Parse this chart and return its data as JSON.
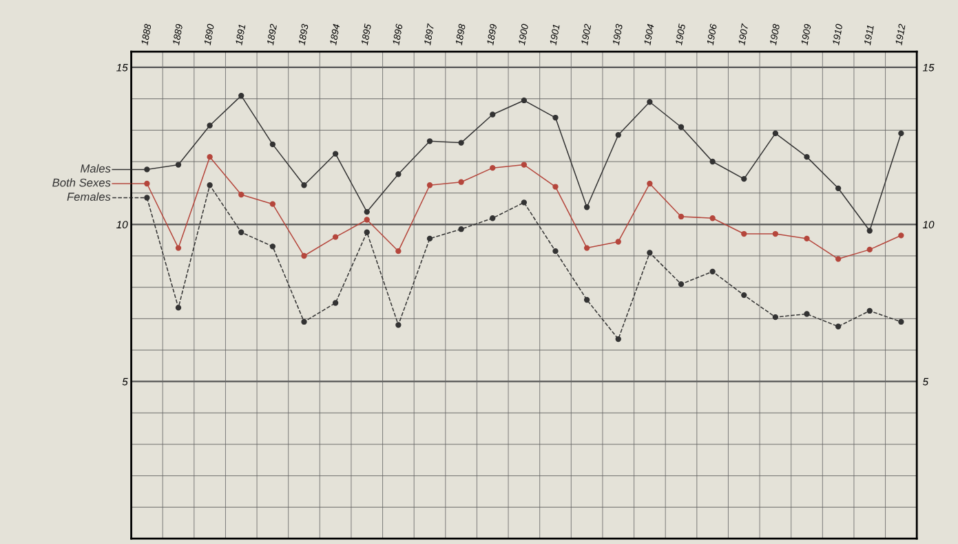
{
  "chart_data": {
    "type": "line",
    "categories": [
      "1888",
      "1889",
      "1890",
      "1891",
      "1892",
      "1893",
      "1894",
      "1895",
      "1896",
      "1897",
      "1898",
      "1899",
      "1900",
      "1901",
      "1902",
      "1903",
      "1904",
      "1905",
      "1906",
      "1907",
      "1908",
      "1909",
      "1910",
      "1911",
      "1912"
    ],
    "series": [
      {
        "name": "Males",
        "color": "#333333",
        "line_style": "solid",
        "values": [
          11.75,
          11.9,
          13.15,
          14.1,
          12.55,
          11.25,
          12.25,
          10.4,
          11.6,
          12.65,
          12.6,
          13.5,
          13.95,
          13.4,
          10.55,
          12.85,
          13.9,
          13.1,
          12.0,
          11.45,
          12.9,
          12.15,
          11.15,
          9.8,
          12.9
        ]
      },
      {
        "name": "Both Sexes",
        "color": "#b5463c",
        "line_style": "solid",
        "values": [
          11.3,
          9.25,
          12.15,
          10.95,
          10.65,
          9.0,
          9.6,
          10.15,
          9.15,
          11.25,
          11.35,
          11.8,
          11.9,
          11.2,
          9.25,
          9.45,
          11.3,
          10.25,
          10.2,
          9.7,
          9.7,
          9.55,
          8.9,
          9.2,
          9.65
        ]
      },
      {
        "name": "Females",
        "color": "#333333",
        "line_style": "dashed",
        "values": [
          10.85,
          7.35,
          11.25,
          9.75,
          9.3,
          6.9,
          7.5,
          9.75,
          6.8,
          9.55,
          9.85,
          10.2,
          10.7,
          9.15,
          7.6,
          6.35,
          9.1,
          8.1,
          8.5,
          7.75,
          7.05,
          7.15,
          6.75,
          7.25,
          6.9
        ]
      }
    ],
    "ylim": [
      0,
      15.5
    ],
    "yticks": [
      {
        "value": 1,
        "label": null
      },
      {
        "value": 2,
        "label": null
      },
      {
        "value": 3,
        "label": null
      },
      {
        "value": 4,
        "label": null
      },
      5,
      {
        "value": 6,
        "label": null
      },
      {
        "value": 7,
        "label": null
      },
      {
        "value": 8,
        "label": null
      },
      {
        "value": 9,
        "label": null
      },
      10,
      {
        "value": 11,
        "label": null
      },
      {
        "value": 12,
        "label": null
      },
      {
        "value": 13,
        "label": null
      },
      {
        "value": 14,
        "label": null
      },
      15
    ],
    "y2lim": [
      0,
      15.5
    ],
    "y2ticks": [
      5,
      10,
      15
    ],
    "grid": true,
    "marker": "circle",
    "legend": "left"
  }
}
